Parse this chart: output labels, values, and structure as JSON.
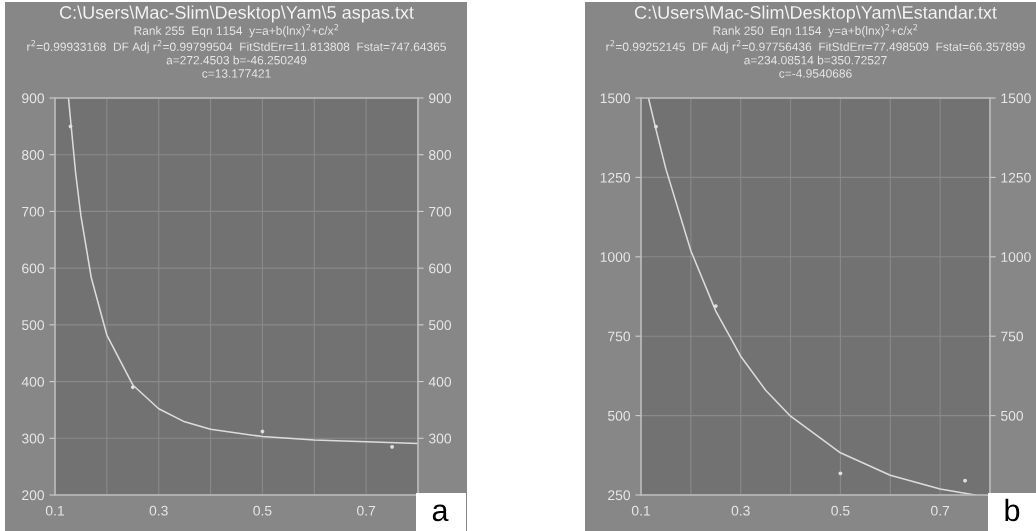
{
  "chart_data": [
    {
      "type": "scatter",
      "title": "C:\\Users\\Mac-Slim\\Desktop\\Yam\\5 aspas.txt",
      "subtitle": "Rank 255  Eqn 1154  y=a+b(lnx)$^{2}$+c/x$^{2}$\nr$^{2}$=0.99933168  DF Adj r$^{2}$=0.99799504  FitStdErr=11.813808  Fstat=747.64365\na=272.4503 b=-46.250249\nc=13.177421",
      "series": [
        {
          "color": "#e0e0e0",
          "x": [
            0.13,
            0.25,
            0.5,
            0.75
          ],
          "values": [
            850,
            390,
            312,
            285
          ]
        },
        {
          "type": "line",
          "color": "#dcdcdc",
          "x": [
            0.126,
            0.14,
            0.15,
            0.17,
            0.2,
            0.25,
            0.3,
            0.35,
            0.4,
            0.5,
            0.6,
            0.7,
            0.8
          ],
          "values": [
            900,
            766,
            692,
            583,
            482,
            394,
            352,
            329,
            316,
            303,
            297,
            294,
            291
          ]
        }
      ],
      "xlim": [
        0.1,
        0.8
      ],
      "xticks": [
        0.1,
        {
          "value": 0.2,
          "label": null
        },
        0.3,
        {
          "value": 0.4,
          "label": null
        },
        0.5,
        {
          "value": 0.6,
          "label": null
        },
        0.7,
        {
          "value": 0.8,
          "label": null
        }
      ],
      "ylim": [
        200,
        900
      ],
      "yticks": [
        200,
        300,
        400,
        500,
        600,
        700,
        800,
        900
      ],
      "y2lim": [
        200,
        900
      ],
      "y2ticks": [
        {
          "value": 200,
          "label": null
        },
        300,
        400,
        500,
        600,
        700,
        800,
        900
      ],
      "grid": true,
      "marker": "none",
      "annotations": [
        "a"
      ]
    },
    {
      "type": "scatter",
      "title": "C:\\Users\\Mac-Slim\\Desktop\\Yam\\Estandar.txt",
      "subtitle": "Rank 250  Eqn 1154  y=a+b(lnx)$^{2}$+c/x$^{2}$\nr$^{2}$=0.99252145  DF Adj r$^{2}$=0.97756436  FitStdErr=77.498509  Fstat=66.357899\na=234.08514 b=350.72527\nc=-4.9540686",
      "series": [
        {
          "color": "#e0e0e0",
          "x": [
            0.13,
            0.25,
            0.5,
            0.75
          ],
          "values": [
            1410,
            845,
            318,
            295
          ]
        },
        {
          "type": "line",
          "color": "#dcdcdc",
          "x": [
            0.115,
            0.13,
            0.15,
            0.2,
            0.25,
            0.3,
            0.35,
            0.4,
            0.5,
            0.6,
            0.7,
            0.77
          ],
          "values": [
            1500,
            1401,
            1276,
            1019,
            829,
            687,
            580,
            498,
            383,
            312,
            269,
            250
          ]
        }
      ],
      "xlim": [
        0.1,
        0.8
      ],
      "xticks": [
        0.1,
        {
          "value": 0.2,
          "label": null
        },
        0.3,
        {
          "value": 0.4,
          "label": null
        },
        0.5,
        {
          "value": 0.6,
          "label": null
        },
        0.7,
        {
          "value": 0.8,
          "label": null
        }
      ],
      "ylim": [
        250,
        1500
      ],
      "yticks": [
        250,
        500,
        750,
        1000,
        1250,
        1500
      ],
      "y2lim": [
        250,
        1500
      ],
      "y2ticks": [
        {
          "value": 250,
          "label": null
        },
        500,
        750,
        1000,
        1250,
        1500
      ],
      "grid": true,
      "marker": "none",
      "annotations": [
        "b"
      ]
    }
  ]
}
